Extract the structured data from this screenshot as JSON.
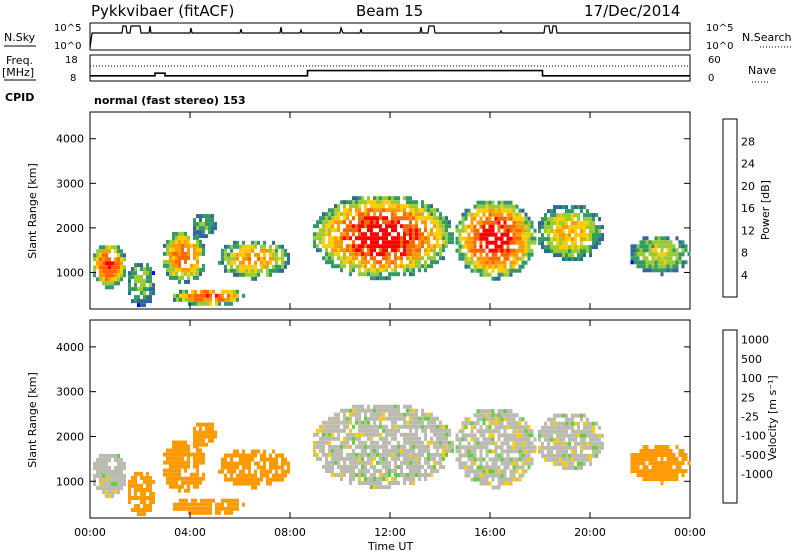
{
  "header": {
    "station": "Pykkvibaer (fitACF)",
    "beam": "Beam 15",
    "date": "17/Dec/2014"
  },
  "nsky_panel": {
    "left_label": "N.Sky",
    "right_label": "N.Search",
    "left_ticks": [
      "10^5",
      "10^0"
    ],
    "right_ticks": [
      "10^5",
      "10^0"
    ]
  },
  "freq_panel": {
    "left_label_1": "Freq.",
    "left_label_2": "[MHz]",
    "right_label": "Nave",
    "left_ticks": [
      "18",
      "8"
    ],
    "right_ticks": [
      "60",
      "0"
    ],
    "freq_steps": [
      {
        "from_h": 0.0,
        "to_h": 2.6,
        "mhz": 10.0
      },
      {
        "from_h": 2.6,
        "to_h": 3.0,
        "mhz": 11.0
      },
      {
        "from_h": 3.0,
        "to_h": 8.7,
        "mhz": 10.0
      },
      {
        "from_h": 8.7,
        "to_h": 18.1,
        "mhz": 12.0
      },
      {
        "from_h": 18.1,
        "to_h": 24.0,
        "mhz": 10.0
      }
    ]
  },
  "cpid": {
    "label": "CPID",
    "mode_text": "normal (fast stereo) 153"
  },
  "power_panel": {
    "ylabel": "Slant Range [km]",
    "colorbar_label": "Power [dB]",
    "colorbar_ticks": [
      "28",
      "24",
      "20",
      "16",
      "12",
      "8",
      "4"
    ],
    "colorbar_colors": [
      "#ff0000",
      "#ff6600",
      "#ff9900",
      "#ffcc00",
      "#99cc33",
      "#339966",
      "#336699",
      "#0000ff"
    ]
  },
  "velocity_panel": {
    "ylabel": "Slant Range [km]",
    "colorbar_label": "Velocity [m s⁻¹]",
    "colorbar_ticks": [
      "1000",
      "500",
      "100",
      "25",
      "-25",
      "-100",
      "-500",
      "-1000"
    ],
    "colorbar_colors": [
      "#2244cc",
      "#3366aa",
      "#228844",
      "#66cc44",
      "#bbbbb0",
      "#ffcc00",
      "#ff9900",
      "#ff6600",
      "#ff0000"
    ]
  },
  "chart_data": {
    "type": "heatmap",
    "title": "Pykkvibaer (fitACF) Beam 15 17/Dec/2014",
    "xlabel": "Time UT",
    "ylabel": "Slant Range [km]",
    "xticks": [
      "00:00",
      "04:00",
      "08:00",
      "12:00",
      "16:00",
      "20:00",
      "00:00"
    ],
    "xlim_hours": [
      0,
      24
    ],
    "yticks": [
      "1000",
      "2000",
      "3000",
      "4000"
    ],
    "ylim_km": [
      180,
      4600
    ],
    "grid": false,
    "legend": "right colorbars",
    "series": [
      {
        "name": "Power [dB]",
        "regions": [
          {
            "t0": 0.0,
            "t1": 1.4,
            "r0": 700,
            "r1": 1700,
            "peak": 26
          },
          {
            "t0": 1.4,
            "t1": 2.6,
            "r0": 300,
            "r1": 1300,
            "peak": 10
          },
          {
            "t0": 2.8,
            "t1": 4.6,
            "r0": 800,
            "r1": 2000,
            "peak": 22
          },
          {
            "t0": 4.0,
            "t1": 5.0,
            "r0": 1800,
            "r1": 2400,
            "peak": 8
          },
          {
            "t0": 3.2,
            "t1": 6.2,
            "r0": 300,
            "r1": 700,
            "peak": 24
          },
          {
            "t0": 5.0,
            "t1": 8.0,
            "r0": 900,
            "r1": 1800,
            "peak": 18
          },
          {
            "t0": 8.8,
            "t1": 14.5,
            "r0": 900,
            "r1": 2800,
            "peak": 28
          },
          {
            "t0": 14.5,
            "t1": 17.8,
            "r0": 900,
            "r1": 2700,
            "peak": 28
          },
          {
            "t0": 17.8,
            "t1": 20.5,
            "r0": 1300,
            "r1": 2600,
            "peak": 16
          },
          {
            "t0": 21.5,
            "t1": 24.0,
            "r0": 1000,
            "r1": 1900,
            "peak": 12
          }
        ]
      },
      {
        "name": "Velocity [m s⁻¹]",
        "regions": [
          {
            "t0": 0.0,
            "t1": 1.4,
            "r0": 700,
            "r1": 1700,
            "v": 0
          },
          {
            "t0": 1.4,
            "t1": 2.6,
            "r0": 300,
            "r1": 1300,
            "v": -200
          },
          {
            "t0": 2.8,
            "t1": 4.6,
            "r0": 800,
            "r1": 2000,
            "v": -300
          },
          {
            "t0": 3.2,
            "t1": 6.2,
            "r0": 300,
            "r1": 700,
            "v": -300
          },
          {
            "t0": 5.0,
            "t1": 8.0,
            "r0": 900,
            "r1": 1800,
            "v": -300
          },
          {
            "t0": 8.8,
            "t1": 17.8,
            "r0": 900,
            "r1": 2800,
            "v": 0
          },
          {
            "t0": 17.8,
            "t1": 20.5,
            "r0": 1300,
            "r1": 2600,
            "v": 0
          },
          {
            "t0": 21.5,
            "t1": 24.0,
            "r0": 1000,
            "r1": 1900,
            "v": -300
          }
        ]
      }
    ]
  }
}
